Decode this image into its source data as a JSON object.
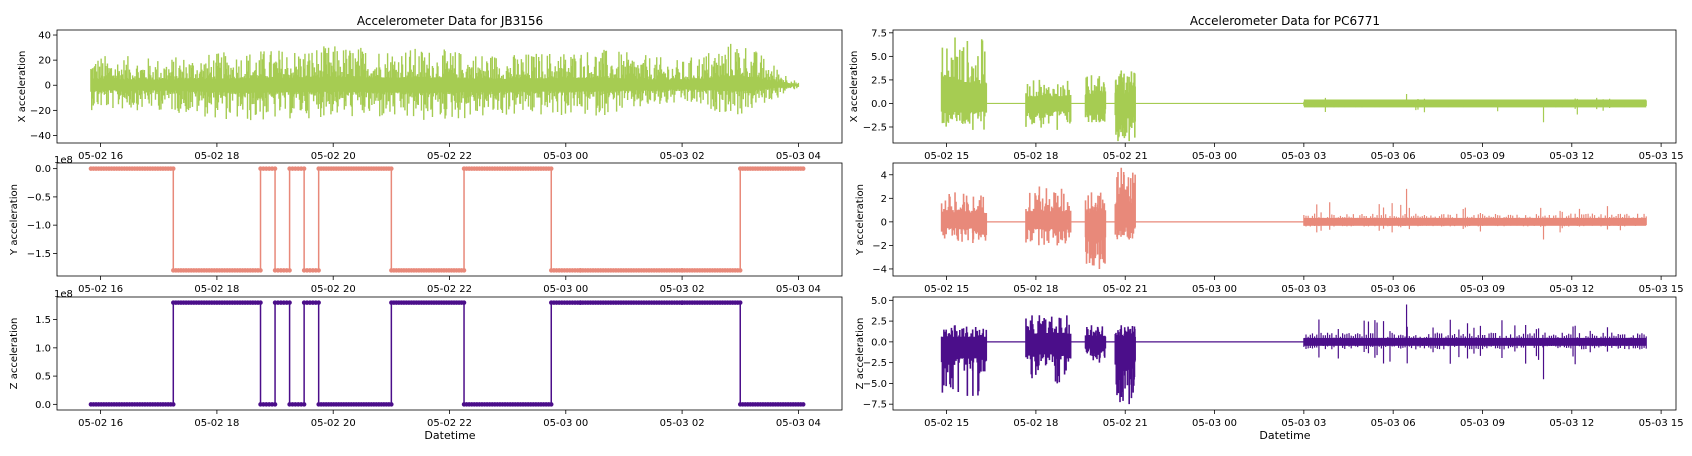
{
  "chart_data": [
    {
      "type": "line",
      "title": "Accelerometer Data for JB3156",
      "xlabel": "",
      "ylabel": "X acceleration",
      "x_ticks": [
        "05-02 16",
        "05-02 18",
        "05-02 20",
        "05-02 22",
        "05-03 00",
        "05-03 02",
        "05-03 04"
      ],
      "y_ticks": [
        "40",
        "20",
        "0",
        "−20",
        "−40"
      ],
      "y_tick_values": [
        40,
        20,
        0,
        -20,
        -40
      ],
      "ylim": [
        -46,
        44
      ],
      "x_range_hours": [
        "05-02 15:15",
        "05-03 04:30"
      ],
      "color": "#a6cc52",
      "series": [
        {
          "values_summary": "dense noisy signal around 0 across the full period",
          "x": [
            "05-02 15:50",
            "05-02 17:00",
            "05-02 18:30",
            "05-02 20:00",
            "05-02 21:30",
            "05-02 23:00",
            "05-03 00:30",
            "05-03 02:00",
            "05-03 03:00",
            "05-03 04:00"
          ],
          "envelope_high": [
            25,
            22,
            28,
            32,
            30,
            25,
            30,
            20,
            38,
            2
          ],
          "envelope_low": [
            -20,
            -20,
            -30,
            -25,
            -30,
            -25,
            -25,
            -15,
            -25,
            -2
          ]
        }
      ]
    },
    {
      "type": "line",
      "title": "",
      "xlabel": "",
      "ylabel": "Y acceleration",
      "scale_label": "1e8",
      "x_ticks": [
        "05-02 16",
        "05-02 18",
        "05-02 20",
        "05-02 22",
        "05-03 00",
        "05-03 02",
        "05-03 04"
      ],
      "y_ticks": [
        "0.0",
        "−0.5",
        "−1.0",
        "−1.5"
      ],
      "y_tick_values": [
        0.0,
        -0.5,
        -1.0,
        -1.5
      ],
      "ylim": [
        -1.9,
        0.1
      ],
      "color": "#e8897a",
      "series": [
        {
          "x": [
            "05-02 15:50",
            "05-02 17:15",
            "05-02 17:15",
            "05-02 18:45",
            "05-02 18:45",
            "05-02 19:00",
            "05-02 19:00",
            "05-02 19:15",
            "05-02 19:15",
            "05-02 19:30",
            "05-02 19:30",
            "05-02 19:45",
            "05-02 19:45",
            "05-02 21:00",
            "05-02 21:00",
            "05-02 22:15",
            "05-02 22:15",
            "05-02 23:45",
            "05-02 23:45",
            "05-03 00:15",
            "05-03 00:15",
            "05-03 02:00",
            "05-03 02:00",
            "05-03 03:00",
            "05-03 03:00",
            "05-03 04:05"
          ],
          "values": [
            0.0,
            0.0,
            -1.8,
            -1.8,
            0.0,
            0.0,
            -1.8,
            -1.8,
            0.0,
            0.0,
            -1.8,
            -1.8,
            0.0,
            0.0,
            -1.8,
            -1.8,
            0.0,
            0.0,
            -1.8,
            -1.8,
            -1.8,
            -1.8,
            -1.8,
            -1.8,
            0.0,
            0.0
          ]
        }
      ]
    },
    {
      "type": "line",
      "title": "",
      "xlabel": "Datetime",
      "ylabel": "Z acceleration",
      "scale_label": "1e8",
      "x_ticks": [
        "05-02 16",
        "05-02 18",
        "05-02 20",
        "05-02 22",
        "05-03 00",
        "05-03 02",
        "05-03 04"
      ],
      "y_ticks": [
        "1.5",
        "1.0",
        "0.5",
        "0.0"
      ],
      "y_tick_values": [
        1.5,
        1.0,
        0.5,
        0.0
      ],
      "ylim": [
        -0.1,
        1.9
      ],
      "color": "#4b0e8a",
      "series": [
        {
          "x": [
            "05-02 15:50",
            "05-02 17:15",
            "05-02 17:15",
            "05-02 18:45",
            "05-02 18:45",
            "05-02 19:00",
            "05-02 19:00",
            "05-02 19:15",
            "05-02 19:15",
            "05-02 19:30",
            "05-02 19:30",
            "05-02 19:45",
            "05-02 19:45",
            "05-02 21:00",
            "05-02 21:00",
            "05-02 22:15",
            "05-02 22:15",
            "05-02 23:45",
            "05-02 23:45",
            "05-03 00:15",
            "05-03 00:15",
            "05-03 02:00",
            "05-03 02:00",
            "05-03 03:00",
            "05-03 03:00",
            "05-03 04:05"
          ],
          "values": [
            0.0,
            0.0,
            1.8,
            1.8,
            0.0,
            0.0,
            1.8,
            1.8,
            0.0,
            0.0,
            1.8,
            1.8,
            0.0,
            0.0,
            1.8,
            1.8,
            0.0,
            0.0,
            1.8,
            1.8,
            1.8,
            1.8,
            1.8,
            1.8,
            0.0,
            0.0
          ]
        }
      ]
    },
    {
      "type": "line",
      "title": "Accelerometer Data for PC6771",
      "xlabel": "",
      "ylabel": "X acceleration",
      "x_ticks": [
        "05-02 15",
        "05-02 18",
        "05-02 21",
        "05-03 00",
        "05-03 03",
        "05-03 06",
        "05-03 09",
        "05-03 12",
        "05-03 15"
      ],
      "y_ticks": [
        "7.5",
        "5.0",
        "2.5",
        "0.0",
        "−2.5"
      ],
      "y_tick_values": [
        7.5,
        5.0,
        2.5,
        0.0,
        -2.5
      ],
      "ylim": [
        -4.2,
        7.8
      ],
      "color": "#a6cc52",
      "series": [
        {
          "bursts": [
            {
              "start": "05-02 14:50",
              "end": "05-02 16:20",
              "high": 7.0,
              "low": -2.8
            },
            {
              "start": "05-02 17:40",
              "end": "05-02 19:10",
              "high": 2.5,
              "low": -2.8
            },
            {
              "start": "05-02 19:40",
              "end": "05-02 20:20",
              "high": 3.0,
              "low": -2.0
            },
            {
              "start": "05-02 20:40",
              "end": "05-02 21:20",
              "high": 3.5,
              "low": -4.0
            },
            {
              "start": "05-03 03:00",
              "end": "05-03 14:30",
              "high": 1.0,
              "low": -2.0
            }
          ],
          "baseline": 0.0
        }
      ]
    },
    {
      "type": "line",
      "title": "",
      "xlabel": "",
      "ylabel": "Y acceleration",
      "x_ticks": [
        "05-02 15",
        "05-02 18",
        "05-02 21",
        "05-03 00",
        "05-03 03",
        "05-03 06",
        "05-03 09",
        "05-03 12",
        "05-03 15"
      ],
      "y_ticks": [
        "4",
        "2",
        "0",
        "−2",
        "−4"
      ],
      "y_tick_values": [
        4,
        2,
        0,
        -2,
        -4
      ],
      "ylim": [
        -4.6,
        5.0
      ],
      "color": "#e8897a",
      "series": [
        {
          "bursts": [
            {
              "start": "05-02 14:50",
              "end": "05-02 16:20",
              "high": 2.5,
              "low": -1.8
            },
            {
              "start": "05-02 17:40",
              "end": "05-02 19:10",
              "high": 3.0,
              "low": -2.0
            },
            {
              "start": "05-02 19:40",
              "end": "05-02 20:20",
              "high": 2.5,
              "low": -4.0
            },
            {
              "start": "05-02 20:40",
              "end": "05-02 21:20",
              "high": 4.6,
              "low": -1.5
            },
            {
              "start": "05-03 03:00",
              "end": "05-03 14:30",
              "high": 2.8,
              "low": -1.5
            }
          ],
          "baseline": 0.0
        }
      ]
    },
    {
      "type": "line",
      "title": "",
      "xlabel": "Datetime",
      "ylabel": "Z acceleration",
      "x_ticks": [
        "05-02 15",
        "05-02 18",
        "05-02 21",
        "05-03 00",
        "05-03 03",
        "05-03 06",
        "05-03 09",
        "05-03 12",
        "05-03 15"
      ],
      "y_ticks": [
        "5.0",
        "2.5",
        "0.0",
        "−2.5",
        "−5.0",
        "−7.5"
      ],
      "y_tick_values": [
        5.0,
        2.5,
        0.0,
        -2.5,
        -5.0,
        -7.5
      ],
      "ylim": [
        -8.2,
        5.4
      ],
      "color": "#4b0e8a",
      "series": [
        {
          "bursts": [
            {
              "start": "05-02 14:50",
              "end": "05-02 16:20",
              "high": 2.0,
              "low": -6.5
            },
            {
              "start": "05-02 17:40",
              "end": "05-02 19:10",
              "high": 3.2,
              "low": -5.0
            },
            {
              "start": "05-02 19:40",
              "end": "05-02 20:20",
              "high": 2.0,
              "low": -2.5
            },
            {
              "start": "05-02 20:40",
              "end": "05-02 21:20",
              "high": 2.0,
              "low": -7.5
            },
            {
              "start": "05-03 03:00",
              "end": "05-03 14:30",
              "high": 4.5,
              "low": -4.5
            }
          ],
          "baseline": 0.0
        }
      ]
    }
  ]
}
